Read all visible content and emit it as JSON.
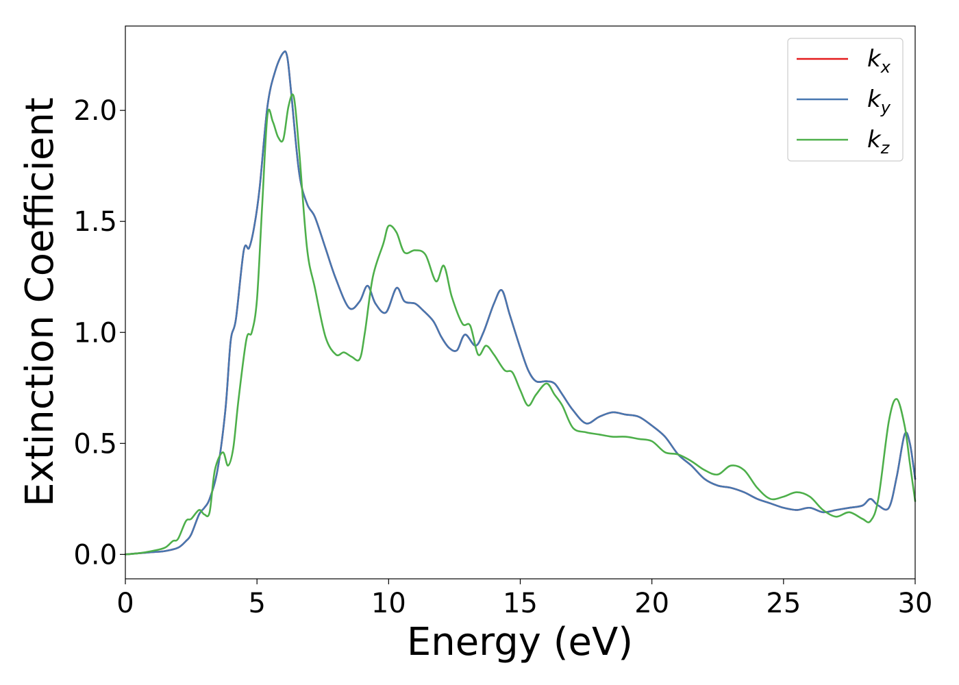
{
  "chart_data": {
    "type": "line",
    "xlabel": "Energy (eV)",
    "ylabel": "Extinction Coefficient",
    "xlim": [
      0,
      30
    ],
    "ylim": [
      -0.11,
      2.38
    ],
    "xticks": [
      0,
      5,
      10,
      15,
      20,
      25,
      30
    ],
    "xtick_labels": [
      "0",
      "5",
      "10",
      "15",
      "20",
      "25",
      "30"
    ],
    "yticks": [
      0.0,
      0.5,
      1.0,
      1.5,
      2.0
    ],
    "ytick_labels": [
      "0.0",
      "0.5",
      "1.0",
      "1.5",
      "2.0"
    ],
    "grid": false,
    "legend_position": "top-right",
    "series": [
      {
        "name": "k_x",
        "label_base": "k",
        "label_sub": "x",
        "color": "#e41a1c",
        "x": [
          0,
          0.5,
          1,
          1.5,
          2,
          2.3,
          2.5,
          2.8,
          3,
          3.2,
          3.5,
          3.8,
          4,
          4.2,
          4.5,
          4.7,
          4.9,
          5.1,
          5.4,
          5.7,
          6,
          6.15,
          6.3,
          6.6,
          6.9,
          7.2,
          7.6,
          8,
          8.5,
          8.9,
          9.2,
          9.5,
          9.9,
          10.3,
          10.6,
          11,
          11.3,
          11.7,
          12,
          12.3,
          12.6,
          12.9,
          13.3,
          13.6,
          14,
          14.3,
          14.6,
          15,
          15.3,
          15.6,
          16,
          16.3,
          16.6,
          17,
          17.5,
          18,
          18.5,
          19,
          19.5,
          20,
          20.5,
          21,
          21.5,
          22,
          22.5,
          23,
          23.5,
          24,
          24.5,
          25,
          25.5,
          26,
          26.5,
          27,
          27.5,
          28,
          28.3,
          28.6,
          29,
          29.3,
          29.6,
          29.8,
          30
        ],
        "values": [
          0,
          0.005,
          0.01,
          0.015,
          0.03,
          0.06,
          0.09,
          0.18,
          0.21,
          0.25,
          0.38,
          0.65,
          0.96,
          1.06,
          1.37,
          1.38,
          1.48,
          1.65,
          2.02,
          2.18,
          2.26,
          2.24,
          2.08,
          1.72,
          1.58,
          1.52,
          1.38,
          1.24,
          1.11,
          1.14,
          1.21,
          1.13,
          1.09,
          1.2,
          1.14,
          1.13,
          1.1,
          1.05,
          0.98,
          0.93,
          0.92,
          0.99,
          0.94,
          1.0,
          1.13,
          1.19,
          1.08,
          0.93,
          0.83,
          0.78,
          0.78,
          0.77,
          0.72,
          0.65,
          0.59,
          0.62,
          0.64,
          0.63,
          0.62,
          0.58,
          0.53,
          0.45,
          0.4,
          0.34,
          0.31,
          0.3,
          0.28,
          0.25,
          0.23,
          0.21,
          0.2,
          0.21,
          0.19,
          0.2,
          0.21,
          0.22,
          0.25,
          0.22,
          0.21,
          0.35,
          0.54,
          0.5,
          0.34
        ]
      },
      {
        "name": "k_y",
        "label_base": "k",
        "label_sub": "y",
        "color": "#4677b0",
        "x": [
          0,
          0.5,
          1,
          1.5,
          2,
          2.3,
          2.5,
          2.8,
          3,
          3.2,
          3.5,
          3.8,
          4,
          4.2,
          4.5,
          4.7,
          4.9,
          5.1,
          5.4,
          5.7,
          6,
          6.15,
          6.3,
          6.6,
          6.9,
          7.2,
          7.6,
          8,
          8.5,
          8.9,
          9.2,
          9.5,
          9.9,
          10.3,
          10.6,
          11,
          11.3,
          11.7,
          12,
          12.3,
          12.6,
          12.9,
          13.3,
          13.6,
          14,
          14.3,
          14.6,
          15,
          15.3,
          15.6,
          16,
          16.3,
          16.6,
          17,
          17.5,
          18,
          18.5,
          19,
          19.5,
          20,
          20.5,
          21,
          21.5,
          22,
          22.5,
          23,
          23.5,
          24,
          24.5,
          25,
          25.5,
          26,
          26.5,
          27,
          27.5,
          28,
          28.3,
          28.6,
          29,
          29.3,
          29.6,
          29.8,
          30
        ],
        "values": [
          0,
          0.005,
          0.01,
          0.015,
          0.03,
          0.06,
          0.09,
          0.18,
          0.21,
          0.25,
          0.38,
          0.65,
          0.96,
          1.06,
          1.37,
          1.38,
          1.48,
          1.65,
          2.02,
          2.18,
          2.26,
          2.24,
          2.08,
          1.72,
          1.58,
          1.52,
          1.38,
          1.24,
          1.11,
          1.14,
          1.21,
          1.13,
          1.09,
          1.2,
          1.14,
          1.13,
          1.1,
          1.05,
          0.98,
          0.93,
          0.92,
          0.99,
          0.94,
          1.0,
          1.13,
          1.19,
          1.08,
          0.93,
          0.83,
          0.78,
          0.78,
          0.77,
          0.72,
          0.65,
          0.59,
          0.62,
          0.64,
          0.63,
          0.62,
          0.58,
          0.53,
          0.45,
          0.4,
          0.34,
          0.31,
          0.3,
          0.28,
          0.25,
          0.23,
          0.21,
          0.2,
          0.21,
          0.19,
          0.2,
          0.21,
          0.22,
          0.25,
          0.22,
          0.21,
          0.35,
          0.54,
          0.5,
          0.34
        ]
      },
      {
        "name": "k_z",
        "label_base": "k",
        "label_sub": "z",
        "color": "#4daf4a",
        "x": [
          0,
          0.5,
          1,
          1.5,
          1.8,
          2,
          2.3,
          2.5,
          2.8,
          3,
          3.2,
          3.4,
          3.7,
          3.9,
          4.1,
          4.3,
          4.6,
          4.8,
          5,
          5.2,
          5.4,
          5.6,
          5.8,
          6,
          6.2,
          6.4,
          6.6,
          6.9,
          7.2,
          7.6,
          8,
          8.3,
          8.6,
          8.9,
          9.1,
          9.4,
          9.8,
          10,
          10.3,
          10.6,
          11,
          11.4,
          11.8,
          12.1,
          12.4,
          12.8,
          13.1,
          13.4,
          13.7,
          14,
          14.4,
          14.7,
          15,
          15.3,
          15.6,
          16,
          16.3,
          16.6,
          17,
          17.5,
          18,
          18.5,
          19,
          19.5,
          20,
          20.5,
          21,
          21.5,
          22,
          22.5,
          23,
          23.5,
          24,
          24.5,
          25,
          25.5,
          26,
          26.5,
          27,
          27.5,
          28,
          28.3,
          28.6,
          29,
          29.3,
          29.6,
          29.8,
          30
        ],
        "values": [
          0,
          0.005,
          0.015,
          0.03,
          0.06,
          0.07,
          0.15,
          0.16,
          0.2,
          0.18,
          0.19,
          0.38,
          0.46,
          0.4,
          0.48,
          0.7,
          0.97,
          1.0,
          1.15,
          1.58,
          1.98,
          1.95,
          1.88,
          1.87,
          2.02,
          2.06,
          1.82,
          1.38,
          1.2,
          0.98,
          0.9,
          0.91,
          0.89,
          0.88,
          1.0,
          1.25,
          1.4,
          1.48,
          1.45,
          1.36,
          1.37,
          1.35,
          1.23,
          1.3,
          1.16,
          1.04,
          1.03,
          0.9,
          0.94,
          0.9,
          0.83,
          0.82,
          0.74,
          0.67,
          0.72,
          0.77,
          0.72,
          0.67,
          0.57,
          0.55,
          0.54,
          0.53,
          0.53,
          0.52,
          0.51,
          0.46,
          0.45,
          0.42,
          0.38,
          0.36,
          0.4,
          0.38,
          0.3,
          0.25,
          0.26,
          0.28,
          0.26,
          0.2,
          0.17,
          0.19,
          0.16,
          0.15,
          0.25,
          0.6,
          0.7,
          0.58,
          0.41,
          0.24
        ]
      }
    ]
  }
}
